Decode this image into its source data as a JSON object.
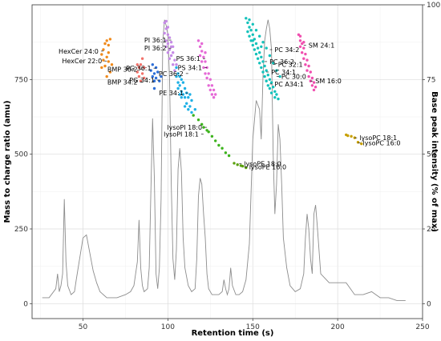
{
  "chart_data": {
    "type": "scatter",
    "title": "",
    "xlabel": "Retention time (s)",
    "ylabel": "Mass to charge ratio (amu)",
    "y2label": "Base peak intensity  (% of max)",
    "xlim": [
      20,
      250
    ],
    "ylim": [
      -50,
      1000
    ],
    "y2lim": [
      -5,
      100
    ],
    "xticks": [
      50,
      100,
      150,
      200,
      250
    ],
    "yticks": [
      0,
      250,
      500,
      750
    ],
    "y2ticks": [
      0,
      25,
      50,
      75,
      100
    ],
    "grid": true,
    "legend": "none",
    "clusters": [
      {
        "name": "HexCer",
        "color": "#f08a1c",
        "points": [
          [
            61,
            834
          ],
          [
            62,
            850
          ],
          [
            62,
            815
          ],
          [
            63,
            870
          ],
          [
            63,
            795
          ],
          [
            64,
            880
          ],
          [
            64,
            760
          ],
          [
            65,
            840
          ],
          [
            65,
            810
          ],
          [
            66,
            885
          ],
          [
            66,
            775
          ],
          [
            67,
            800
          ],
          [
            61,
            790
          ],
          [
            64,
            825
          ],
          [
            65,
            865
          ]
        ]
      },
      {
        "name": "BMP",
        "color": "#f3726b",
        "points": [
          [
            82,
            775
          ],
          [
            83,
            790
          ],
          [
            83,
            760
          ],
          [
            84,
            800
          ],
          [
            84,
            745
          ],
          [
            85,
            770
          ],
          [
            85,
            820
          ],
          [
            86,
            790
          ],
          [
            86,
            755
          ],
          [
            82,
            800
          ]
        ]
      },
      {
        "name": "PG",
        "color": "#2e6fd8",
        "points": [
          [
            90,
            780
          ],
          [
            91,
            760
          ],
          [
            91,
            800
          ],
          [
            92,
            770
          ],
          [
            92,
            745
          ],
          [
            93,
            790
          ],
          [
            93,
            755
          ],
          [
            94,
            775
          ],
          [
            95,
            745
          ],
          [
            96,
            760
          ],
          [
            92,
            720
          ]
        ]
      },
      {
        "name": "PI",
        "color": "#c58be6",
        "points": [
          [
            98,
            940
          ],
          [
            98,
            905
          ],
          [
            99,
            920
          ],
          [
            99,
            880
          ],
          [
            99,
            860
          ],
          [
            100,
            900
          ],
          [
            100,
            870
          ],
          [
            100,
            840
          ],
          [
            101,
            890
          ],
          [
            101,
            850
          ],
          [
            101,
            820
          ],
          [
            102,
            860
          ],
          [
            102,
            830
          ],
          [
            103,
            840
          ],
          [
            103,
            800
          ],
          [
            104,
            815
          ],
          [
            104,
            780
          ],
          [
            105,
            800
          ],
          [
            99,
            945
          ],
          [
            100,
            925
          ],
          [
            102,
            875
          ],
          [
            103,
            860
          ]
        ]
      },
      {
        "name": "PE",
        "color": "#1eb0e6",
        "points": [
          [
            105,
            790
          ],
          [
            106,
            770
          ],
          [
            106,
            740
          ],
          [
            107,
            760
          ],
          [
            107,
            730
          ],
          [
            108,
            750
          ],
          [
            108,
            710
          ],
          [
            109,
            740
          ],
          [
            109,
            700
          ],
          [
            110,
            720
          ],
          [
            110,
            690
          ],
          [
            111,
            705
          ],
          [
            111,
            670
          ],
          [
            112,
            690
          ],
          [
            113,
            700
          ],
          [
            113,
            660
          ],
          [
            114,
            680
          ],
          [
            106,
            720
          ],
          [
            108,
            690
          ],
          [
            110,
            660
          ],
          [
            112,
            650
          ],
          [
            114,
            640
          ],
          [
            116,
            650
          ],
          [
            105,
            760
          ],
          [
            107,
            700
          ]
        ]
      },
      {
        "name": "PS",
        "color": "#e569d6",
        "points": [
          [
            118,
            880
          ],
          [
            119,
            860
          ],
          [
            119,
            830
          ],
          [
            120,
            845
          ],
          [
            120,
            810
          ],
          [
            121,
            825
          ],
          [
            121,
            790
          ],
          [
            122,
            810
          ],
          [
            122,
            770
          ],
          [
            123,
            790
          ],
          [
            123,
            755
          ],
          [
            124,
            770
          ],
          [
            124,
            730
          ],
          [
            125,
            750
          ],
          [
            125,
            715
          ],
          [
            126,
            730
          ],
          [
            126,
            700
          ],
          [
            127,
            715
          ],
          [
            127,
            690
          ],
          [
            128,
            700
          ],
          [
            120,
            870
          ],
          [
            122,
            840
          ]
        ]
      },
      {
        "name": "lysoPI",
        "color": "#3cb31c",
        "points": [
          [
            115,
            630
          ],
          [
            118,
            615
          ],
          [
            120,
            600
          ],
          [
            121,
            590
          ],
          [
            123,
            580
          ],
          [
            124,
            575
          ],
          [
            126,
            560
          ],
          [
            128,
            545
          ],
          [
            130,
            530
          ],
          [
            132,
            520
          ],
          [
            134,
            505
          ],
          [
            136,
            495
          ]
        ]
      },
      {
        "name": "lysoPE",
        "color": "#5aa10e",
        "points": [
          [
            139,
            470
          ],
          [
            141,
            465
          ],
          [
            143,
            462
          ],
          [
            144,
            460
          ],
          [
            146,
            455
          ]
        ]
      },
      {
        "name": "PC",
        "color": "#14c2bb",
        "points": [
          [
            146,
            955
          ],
          [
            147,
            940
          ],
          [
            147,
            910
          ],
          [
            148,
            925
          ],
          [
            148,
            895
          ],
          [
            149,
            915
          ],
          [
            149,
            880
          ],
          [
            150,
            900
          ],
          [
            150,
            865
          ],
          [
            151,
            885
          ],
          [
            151,
            850
          ],
          [
            152,
            870
          ],
          [
            152,
            835
          ],
          [
            153,
            855
          ],
          [
            153,
            820
          ],
          [
            154,
            840
          ],
          [
            154,
            805
          ],
          [
            155,
            825
          ],
          [
            155,
            790
          ],
          [
            156,
            810
          ],
          [
            156,
            775
          ],
          [
            157,
            795
          ],
          [
            157,
            760
          ],
          [
            158,
            780
          ],
          [
            158,
            745
          ],
          [
            159,
            765
          ],
          [
            159,
            730
          ],
          [
            160,
            750
          ],
          [
            160,
            720
          ],
          [
            161,
            740
          ],
          [
            161,
            705
          ],
          [
            162,
            725
          ],
          [
            163,
            710
          ],
          [
            163,
            690
          ],
          [
            164,
            700
          ],
          [
            165,
            685
          ],
          [
            148,
            950
          ],
          [
            150,
            935
          ],
          [
            152,
            915
          ],
          [
            154,
            895
          ],
          [
            156,
            875
          ],
          [
            158,
            855
          ],
          [
            160,
            830
          ],
          [
            162,
            805
          ],
          [
            164,
            780
          ],
          [
            166,
            760
          ],
          [
            150,
            880
          ],
          [
            155,
            860
          ]
        ]
      },
      {
        "name": "SM",
        "color": "#f04faf",
        "points": [
          [
            177,
            900
          ],
          [
            178,
            880
          ],
          [
            178,
            860
          ],
          [
            179,
            870
          ],
          [
            179,
            840
          ],
          [
            180,
            855
          ],
          [
            180,
            820
          ],
          [
            181,
            835
          ],
          [
            181,
            800
          ],
          [
            182,
            815
          ],
          [
            182,
            780
          ],
          [
            183,
            795
          ],
          [
            183,
            760
          ],
          [
            184,
            775
          ],
          [
            184,
            745
          ],
          [
            185,
            755
          ],
          [
            185,
            730
          ],
          [
            186,
            740
          ],
          [
            186,
            715
          ],
          [
            187,
            725
          ],
          [
            178,
            895
          ],
          [
            180,
            875
          ]
        ]
      },
      {
        "name": "lysoPC",
        "color": "#c8a000",
        "points": [
          [
            205,
            565
          ],
          [
            206,
            562
          ],
          [
            208,
            560
          ],
          [
            210,
            555
          ],
          [
            212,
            540
          ],
          [
            214,
            535
          ]
        ]
      }
    ],
    "chromatogram": {
      "x": [
        26,
        30,
        34,
        35,
        36,
        37,
        38,
        39,
        40,
        41,
        43,
        45,
        46,
        48,
        50,
        52,
        54,
        56,
        58,
        60,
        62,
        64,
        66,
        70,
        75,
        78,
        80,
        82,
        83,
        84,
        85,
        86,
        88,
        89,
        90,
        91,
        92,
        93,
        94,
        95,
        96,
        97,
        98,
        99,
        100,
        101,
        102,
        103,
        104,
        105,
        106,
        107,
        108,
        109,
        110,
        112,
        114,
        116,
        117,
        118,
        119,
        120,
        121,
        122,
        123,
        124,
        126,
        128,
        130,
        132,
        133,
        134,
        135,
        136,
        137,
        138,
        140,
        142,
        144,
        146,
        148,
        150,
        152,
        154,
        155,
        156,
        157,
        158,
        159,
        160,
        161,
        162,
        163,
        164,
        165,
        166,
        167,
        168,
        170,
        172,
        175,
        178,
        180,
        181,
        182,
        183,
        184,
        185,
        186,
        187,
        188,
        190,
        195,
        200,
        205,
        210,
        215,
        220,
        225,
        230,
        235,
        240
      ],
      "y": [
        2,
        2,
        5,
        10,
        4,
        6,
        10,
        35,
        14,
        6,
        3,
        4,
        8,
        15,
        22,
        23,
        17,
        11,
        7,
        4,
        3,
        2,
        2,
        2,
        3,
        4,
        6,
        14,
        28,
        12,
        6,
        4,
        5,
        12,
        38,
        62,
        42,
        10,
        5,
        12,
        35,
        88,
        95,
        93,
        90,
        75,
        40,
        15,
        8,
        18,
        45,
        52,
        44,
        22,
        12,
        6,
        4,
        5,
        15,
        36,
        42,
        40,
        30,
        22,
        10,
        5,
        3,
        3,
        3,
        4,
        8,
        5,
        3,
        5,
        12,
        6,
        3,
        3,
        4,
        8,
        20,
        55,
        68,
        65,
        55,
        76,
        88,
        92,
        95,
        92,
        85,
        50,
        30,
        40,
        60,
        55,
        40,
        22,
        12,
        6,
        4,
        5,
        10,
        22,
        30,
        25,
        15,
        10,
        30,
        33,
        26,
        10,
        7,
        7,
        7,
        3,
        3,
        4,
        2,
        2,
        1,
        1
      ],
      "annotations": [
        {
          "text": "HexCer 24:0",
          "x": 62,
          "y": 845
        },
        {
          "text": "HexCer 22:0",
          "x": 64,
          "y": 812
        },
        {
          "text": "BMP 36:2",
          "x": 85,
          "y": 785
        },
        {
          "text": "BMP 34:2",
          "x": 85,
          "y": 742
        },
        {
          "text": "PG 36:1",
          "x": 93,
          "y": 788
        },
        {
          "text": "PG 34:1",
          "x": 95,
          "y": 748
        },
        {
          "text": "PI 36:1",
          "x": 102,
          "y": 882
        },
        {
          "text": "PI 36:2",
          "x": 102,
          "y": 855
        },
        {
          "text": "PS 36:1",
          "x": 122,
          "y": 820
        },
        {
          "text": "PS 34:1",
          "x": 123,
          "y": 790
        },
        {
          "text": "PC 36:2",
          "x": 112,
          "y": 770
        },
        {
          "text": "PE 34:1",
          "x": 112,
          "y": 705
        },
        {
          "text": "lysoPI 18:0",
          "x": 123,
          "y": 590
        },
        {
          "text": "lysoPI 18:1",
          "x": 121,
          "y": 568
        },
        {
          "text": "lysoPE 18:0",
          "x": 142,
          "y": 468
        },
        {
          "text": "lysoPE 16:0",
          "x": 145,
          "y": 458
        },
        {
          "text": "PC 36:2",
          "x": 157,
          "y": 810
        },
        {
          "text": "PC 34:1",
          "x": 158,
          "y": 775
        },
        {
          "text": "PC A34:1",
          "x": 160,
          "y": 735
        },
        {
          "text": "PC 34:2",
          "x": 160,
          "y": 850
        },
        {
          "text": "PC 32:1",
          "x": 162,
          "y": 800
        },
        {
          "text": "PC 30:0",
          "x": 164,
          "y": 760
        },
        {
          "text": "SM 24:1",
          "x": 180,
          "y": 865
        },
        {
          "text": "SM 16:0",
          "x": 184,
          "y": 745
        },
        {
          "text": "lysoPC 18:1",
          "x": 210,
          "y": 555
        },
        {
          "text": "lysoPC 16:0",
          "x": 212,
          "y": 538
        }
      ]
    }
  }
}
